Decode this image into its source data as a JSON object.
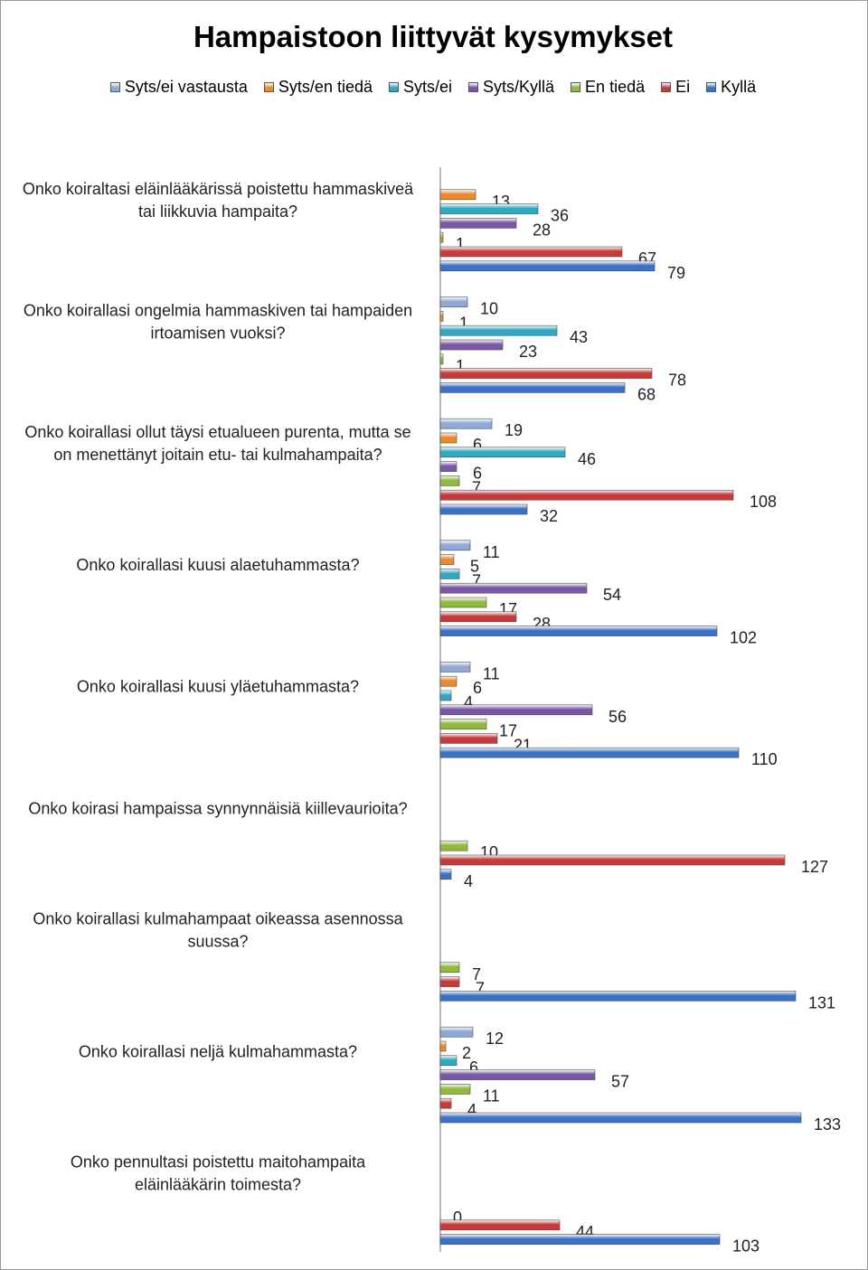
{
  "chart_data": {
    "type": "bar",
    "orientation": "horizontal",
    "title": "Hampaistoon liittyvät kysymykset",
    "legend_position": "top",
    "grid": false,
    "series": [
      {
        "name": "Syts/ei vastausta",
        "color": "#8ea9d6"
      },
      {
        "name": "Syts/en tiedä",
        "color": "#e98a2c"
      },
      {
        "name": "Syts/ei",
        "color": "#2fa8c1"
      },
      {
        "name": "Syts/Kyllä",
        "color": "#7a57a6"
      },
      {
        "name": "En tiedä",
        "color": "#8fba3c"
      },
      {
        "name": "Ei",
        "color": "#c8393a"
      },
      {
        "name": "Kyllä",
        "color": "#3b72c5"
      }
    ],
    "categories": [
      {
        "label": [
          "Onko koiraltasi eläinlääkärissä poistettu hammaskiveä",
          "tai liikkuvia hampaita?"
        ],
        "values": [
          null,
          13,
          36,
          28,
          1,
          67,
          79
        ]
      },
      {
        "label": [
          "Onko koirallasi ongelmia hammaskiven tai hampaiden",
          "irtoamisen vuoksi?"
        ],
        "values": [
          10,
          1,
          43,
          23,
          1,
          78,
          68
        ]
      },
      {
        "label": [
          "Onko koirallasi ollut täysi etualueen purenta, mutta se",
          "on menettänyt joitain etu- tai kulmahampaita?"
        ],
        "values": [
          19,
          6,
          46,
          6,
          7,
          108,
          32
        ]
      },
      {
        "label": [
          "Onko koirallasi kuusi alaetuhammasta?"
        ],
        "values": [
          11,
          5,
          7,
          54,
          17,
          28,
          102
        ]
      },
      {
        "label": [
          "Onko koirallasi kuusi yläetuhammasta?"
        ],
        "values": [
          11,
          6,
          4,
          56,
          17,
          21,
          110
        ]
      },
      {
        "label": [
          "Onko koirasi hampaissa synnynnäisiä kiillevaurioita?"
        ],
        "values": [
          null,
          null,
          null,
          null,
          10,
          127,
          4
        ]
      },
      {
        "label": [
          "Onko koirallasi kulmahampaat oikeassa asennossa",
          "suussa?"
        ],
        "values": [
          null,
          null,
          null,
          null,
          7,
          7,
          131
        ]
      },
      {
        "label": [
          "Onko koirallasi neljä kulmahammasta?"
        ],
        "values": [
          12,
          2,
          6,
          57,
          11,
          4,
          133
        ]
      },
      {
        "label": [
          "Onko pennultasi poistettu maitohampaita",
          "eläinlääkärin toimesta?"
        ],
        "values": [
          null,
          null,
          null,
          null,
          0,
          44,
          103
        ]
      }
    ]
  }
}
